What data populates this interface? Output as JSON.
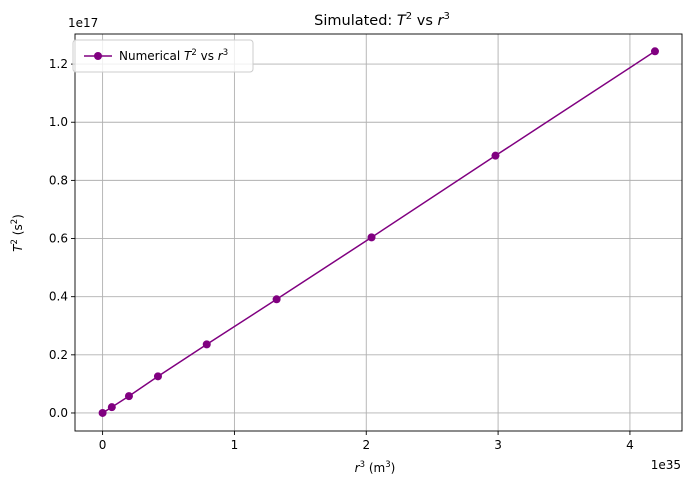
{
  "chart_data": {
    "type": "line",
    "title": {
      "prefix": "Simulated: ",
      "t": "T",
      "t_exp": "2",
      "mid": " vs ",
      "r": "r",
      "r_exp": "3"
    },
    "xlabel": {
      "var": "r",
      "var_exp": "3",
      "unit_open": " (m",
      "unit_exp": "3",
      "unit_close": ")"
    },
    "ylabel": {
      "var": "T",
      "var_exp": "2",
      "unit_open": " (s",
      "unit_exp": "2",
      "unit_close": ")"
    },
    "x_offset_label": "1e35",
    "y_offset_label": "1e17",
    "x_ticks": [
      "0",
      "1",
      "2",
      "3",
      "4"
    ],
    "y_ticks": [
      "0.0",
      "0.2",
      "0.4",
      "0.6",
      "0.8",
      "1.0",
      "1.2"
    ],
    "xlim": [
      -0.2093,
      4.395
    ],
    "ylim": [
      -0.062,
      1.3035
    ],
    "grid": true,
    "legend_placement": "top-left",
    "series": [
      {
        "name": {
          "prefix": "Numerical ",
          "t": "T",
          "t_exp": "2",
          "mid": " vs ",
          "r": "r",
          "r_exp": "3"
        },
        "color": "#800080",
        "marker": "circle",
        "x": [
          0.0,
          0.07,
          0.2,
          0.42,
          0.79,
          1.32,
          2.04,
          2.98,
          4.19
        ],
        "y": [
          0.0,
          0.02,
          0.058,
          0.126,
          0.236,
          0.391,
          0.604,
          0.885,
          1.244
        ]
      }
    ]
  }
}
